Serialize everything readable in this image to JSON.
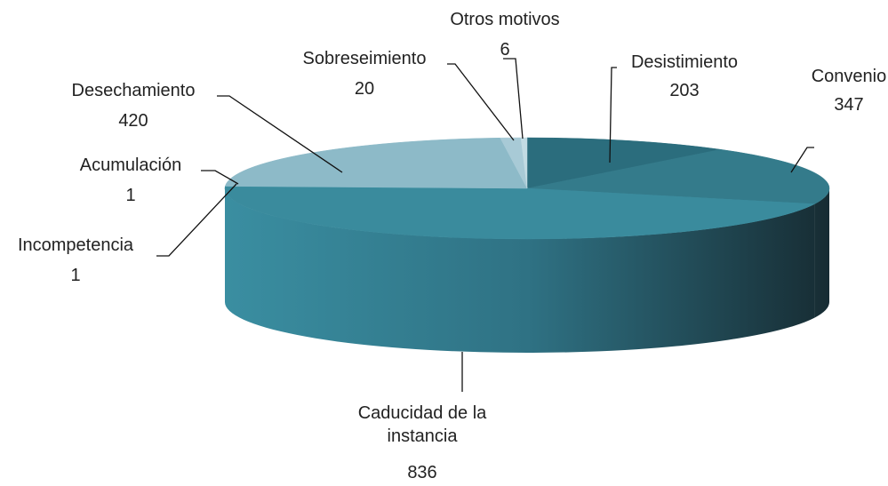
{
  "chart_data": {
    "type": "pie",
    "categories": [
      "Desistimiento",
      "Convenio",
      "Caducidad de la instancia",
      "Incompetencia",
      "Acumulación",
      "Desechamiento",
      "Sobreseimiento",
      "Otros motivos"
    ],
    "values": [
      203,
      347,
      836,
      1,
      1,
      420,
      20,
      6
    ],
    "colors": [
      "#2b6d7d",
      "#347b8b",
      "#3a8b9d",
      "#3f92a4",
      "#4597a9",
      "#8dbac8",
      "#a8cad6",
      "#c2dbe3"
    ]
  }
}
